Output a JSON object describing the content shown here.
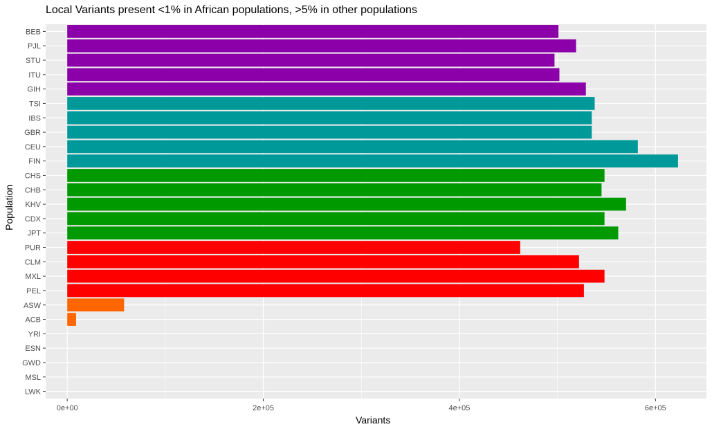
{
  "chart_data": {
    "type": "bar",
    "orientation": "horizontal",
    "title": "Local Variants present <1% in African populations, >5% in other populations",
    "xlabel": "Variants",
    "ylabel": "Population",
    "xlim": [
      -22000,
      652000
    ],
    "x_ticks": [
      0,
      200000,
      400000,
      600000
    ],
    "x_tick_labels": [
      "0e+00",
      "2e+05",
      "4e+05",
      "6e+05"
    ],
    "grid": true,
    "legend": "none",
    "background": "#EBEBEB",
    "categories": [
      "BEB",
      "PJL",
      "STU",
      "ITU",
      "GIH",
      "TSI",
      "IBS",
      "GBR",
      "CEU",
      "FIN",
      "CHS",
      "CHB",
      "KHV",
      "CDX",
      "JPT",
      "PUR",
      "CLM",
      "MXL",
      "PEL",
      "ASW",
      "ACB",
      "YRI",
      "ESN",
      "GWD",
      "MSL",
      "LWK"
    ],
    "values": [
      501000,
      519000,
      497000,
      502000,
      529000,
      538000,
      535000,
      535000,
      582000,
      623000,
      548000,
      545000,
      570000,
      548000,
      562000,
      462000,
      522000,
      548000,
      527000,
      58000,
      9000,
      0,
      0,
      0,
      0,
      0
    ],
    "colors": [
      "#8B00A9",
      "#8B00A9",
      "#8B00A9",
      "#8B00A9",
      "#8B00A9",
      "#009999",
      "#009999",
      "#009999",
      "#009999",
      "#009999",
      "#009900",
      "#009900",
      "#009900",
      "#009900",
      "#009900",
      "#FF0000",
      "#FF0000",
      "#FF0000",
      "#FF0000",
      "#FF6600",
      "#FF6600",
      "#FF6600",
      "#FF6600",
      "#FF6600",
      "#FF6600",
      "#FF6600"
    ]
  }
}
